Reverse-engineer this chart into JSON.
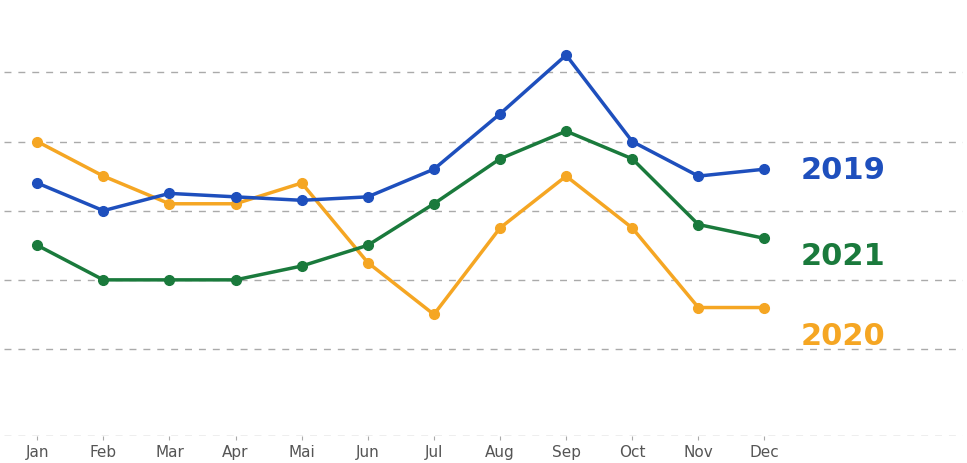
{
  "series": {
    "2019": {
      "color": "#1e4fbd",
      "values": [
        68,
        60,
        65,
        64,
        63,
        64,
        72,
        88,
        105,
        80,
        70,
        72
      ],
      "label": "2019"
    },
    "2020": {
      "color": "#f5a623",
      "values": [
        80,
        70,
        62,
        62,
        68,
        45,
        30,
        55,
        70,
        55,
        32,
        32
      ],
      "label": "2020"
    },
    "2021": {
      "color": "#1a7a3c",
      "values": [
        50,
        40,
        40,
        40,
        44,
        50,
        62,
        75,
        83,
        75,
        56,
        52
      ],
      "label": "2021"
    }
  },
  "x_labels": [
    "Jan",
    "Feb",
    "Mar",
    "Apr",
    "Mai",
    "Jun",
    "Jul",
    "Aug",
    "Sep",
    "Oct",
    "Nov",
    "Dec"
  ],
  "background_color": "#ffffff",
  "grid_color": "#aaaaaa",
  "ylim": [
    -5,
    120
  ],
  "legend_fontsize": 22,
  "tick_fontsize": 11,
  "legend_positions": {
    "2019": [
      11.55,
      72
    ],
    "2021": [
      11.55,
      47
    ],
    "2020": [
      11.55,
      24
    ]
  }
}
